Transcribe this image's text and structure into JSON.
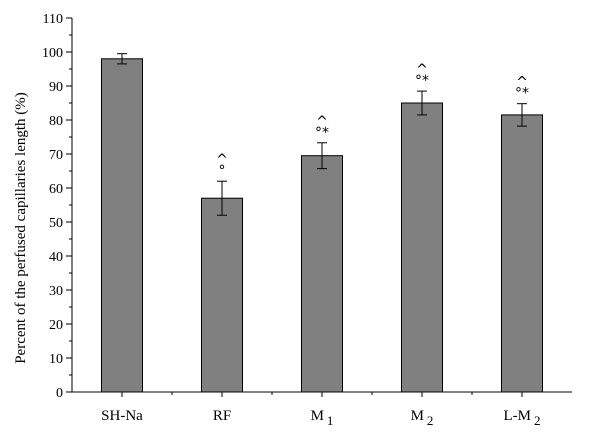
{
  "chart_data": {
    "type": "bar",
    "categories": [
      "SH-Na",
      "RF",
      "M1",
      "M2",
      "L-M2"
    ],
    "category_labels": [
      {
        "main": "SH-Na",
        "sub": ""
      },
      {
        "main": "RF",
        "sub": ""
      },
      {
        "main": "M",
        "sub": "1"
      },
      {
        "main": "M",
        "sub": "2"
      },
      {
        "main": "L-M",
        "sub": "2"
      }
    ],
    "values": [
      98,
      57,
      69.5,
      85,
      81.5
    ],
    "errors": [
      1.5,
      5,
      3.8,
      3.5,
      3.3
    ],
    "annotations": [
      [],
      [
        "^",
        "°"
      ],
      [
        "^",
        "°*"
      ],
      [
        "^",
        "°*"
      ],
      [
        "^",
        "°*"
      ]
    ],
    "ylabel": "Percent of the perfused capillaries length (%)",
    "xlabel": "",
    "ylim": [
      0,
      110
    ],
    "yticks": [
      0,
      10,
      20,
      30,
      40,
      50,
      60,
      70,
      80,
      90,
      100,
      110
    ],
    "bar_color": "#808080",
    "grid": false
  }
}
